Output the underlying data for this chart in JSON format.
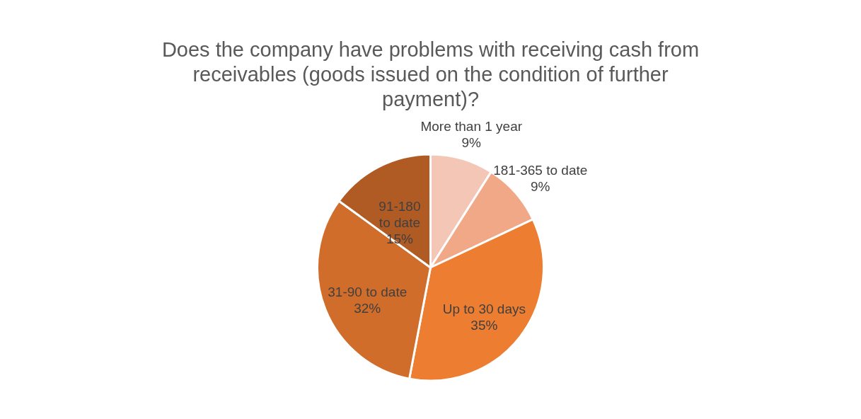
{
  "chart_data": {
    "type": "pie",
    "title": "Does the company have problems with receiving cash from receivables (goods issued on the condition of further payment)?",
    "categories": [
      "More than 1 year",
      "181-365 to date",
      "Up to 30 days",
      "31-90 to date",
      "91-180 to date"
    ],
    "values": [
      9,
      9,
      35,
      32,
      15
    ],
    "value_labels": [
      "9%",
      "9%",
      "35%",
      "32%",
      "15%"
    ],
    "colors": [
      "#f4c6b5",
      "#f1a886",
      "#ed7d31",
      "#d16d2a",
      "#b05b23"
    ]
  }
}
